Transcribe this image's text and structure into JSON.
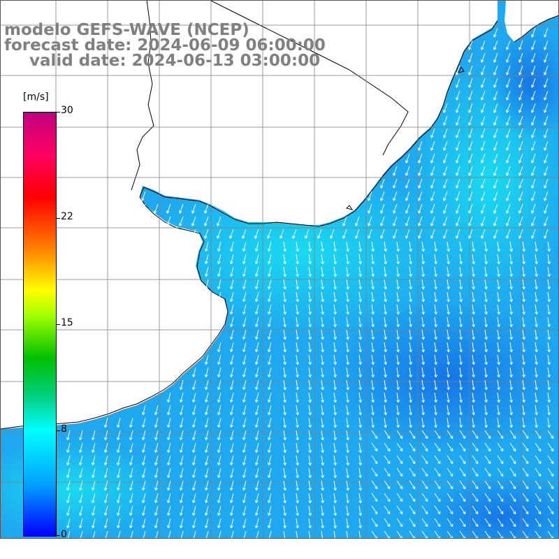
{
  "title": {
    "line1": "modelo GEFS-WAVE (NCEP)",
    "line2": "forecast date: 2024-06-09 06:00:00",
    "line3": "valid date: 2024-06-13 03:00:00"
  },
  "colorbar": {
    "unit": "[m/s]",
    "ticks": [
      "30",
      "22",
      "15",
      "8",
      "0"
    ]
  },
  "colors": {
    "ocean_base": "#1ea8f0",
    "ocean_light": "#18d6f0",
    "ocean_dark": "#1878e6",
    "land": "#ffffff",
    "grid": "#808080",
    "arrow": "#ffffff",
    "title_text": "#808080"
  }
}
